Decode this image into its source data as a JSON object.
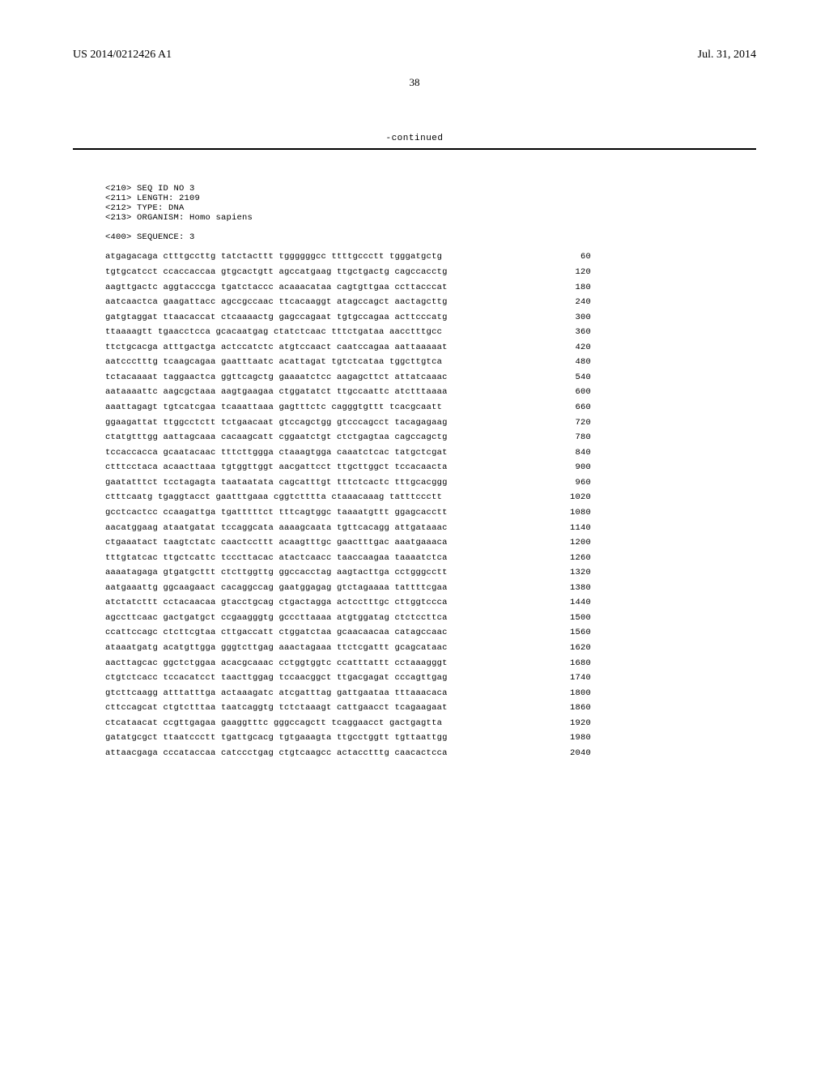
{
  "header": {
    "pub_number": "US 2014/0212426 A1",
    "pub_date": "Jul. 31, 2014",
    "page_number": "38",
    "continued_label": "-continued"
  },
  "seq_meta": {
    "seq_id": "<210> SEQ ID NO 3",
    "length": "<211> LENGTH: 2109",
    "type": "<212> TYPE: DNA",
    "organism": "<213> ORGANISM: Homo sapiens",
    "sequence_label": "<400> SEQUENCE: 3"
  },
  "sequence_lines": [
    {
      "text": "atgagacaga ctttgccttg tatctacttt tggggggcc ttttgccctt tgggatgctg",
      "pos": "60"
    },
    {
      "text": "tgtgcatcct ccaccaccaa gtgcactgtt agccatgaag ttgctgactg cagccacctg",
      "pos": "120"
    },
    {
      "text": "aagttgactc aggtacccga tgatctaccc acaaacataa cagtgttgaa ccttacccat",
      "pos": "180"
    },
    {
      "text": "aatcaactca gaagattacc agccgccaac ttcacaaggt atagccagct aactagcttg",
      "pos": "240"
    },
    {
      "text": "gatgtaggat ttaacaccat ctcaaaactg gagccagaat tgtgccagaa acttcccatg",
      "pos": "300"
    },
    {
      "text": "ttaaaagtt tgaacctcca gcacaatgag ctatctcaac tttctgataa aacctttgcc",
      "pos": "360"
    },
    {
      "text": "ttctgcacga atttgactga actccatctc atgtccaact caatccagaa aattaaaaat",
      "pos": "420"
    },
    {
      "text": "aatccctttg tcaagcagaa gaatttaatc acattagat tgtctcataa tggcttgtca",
      "pos": "480"
    },
    {
      "text": "tctacaaaat taggaactca ggttcagctg gaaaatctcc aagagcttct attatcaaac",
      "pos": "540"
    },
    {
      "text": "aataaaattc aagcgctaaa aagtgaagaa ctggatatct ttgccaattc atctttaaaa",
      "pos": "600"
    },
    {
      "text": "aaattagagt tgtcatcgaa tcaaattaaa gagtttctc cagggtgttt tcacgcaatt",
      "pos": "660"
    },
    {
      "text": "ggaagattat ttggcctctt tctgaacaat gtccagctgg gtcccagcct tacagagaag",
      "pos": "720"
    },
    {
      "text": "ctatgtttgg aattagcaaa cacaagcatt cggaatctgt ctctgagtaa cagccagctg",
      "pos": "780"
    },
    {
      "text": "tccaccacca gcaatacaac tttcttggga ctaaagtgga caaatctcac tatgctcgat",
      "pos": "840"
    },
    {
      "text": "ctttcctaca acaacttaaa tgtggttggt aacgattcct ttgcttggct tccacaacta",
      "pos": "900"
    },
    {
      "text": "gaatatttct tcctagagta taataatata cagcatttgt tttctcactc tttgcacggg",
      "pos": "960"
    },
    {
      "text": "ctttcaatg tgaggtacct gaatttgaaa cggtctttta ctaaacaaag tatttccctt",
      "pos": "1020"
    },
    {
      "text": "gcctcactcc ccaagattga tgatttttct tttcagtggc taaaatgttt ggagcacctt",
      "pos": "1080"
    },
    {
      "text": "aacatggaag ataatgatat tccaggcata aaaagcaata tgttcacagg attgataaac",
      "pos": "1140"
    },
    {
      "text": "ctgaaatact taagtctatc caactccttt acaagtttgc gaactttgac aaatgaaaca",
      "pos": "1200"
    },
    {
      "text": "tttgtatcac ttgctcattc tcccttacac atactcaacc taaccaagaa taaaatctca",
      "pos": "1260"
    },
    {
      "text": "aaaatagaga gtgatgcttt ctcttggttg ggccacctag aagtacttga cctgggcctt",
      "pos": "1320"
    },
    {
      "text": "aatgaaattg ggcaagaact cacaggccag gaatggagag gtctagaaaa tattttcgaa",
      "pos": "1380"
    },
    {
      "text": "atctatcttt cctacaacaa gtacctgcag ctgactagga actcctttgc cttggtccca",
      "pos": "1440"
    },
    {
      "text": "agccttcaac gactgatgct ccgaagggtg gcccttaaaa atgtggatag ctctccttca",
      "pos": "1500"
    },
    {
      "text": "ccattccagc ctcttcgtaa cttgaccatt ctggatctaa gcaacaacaa catagccaac",
      "pos": "1560"
    },
    {
      "text": "ataaatgatg acatgttgga gggtcttgag aaactagaaa ttctcgattt gcagcataac",
      "pos": "1620"
    },
    {
      "text": "aacttagcac ggctctggaa acacgcaaac cctggtggtc ccatttattt cctaaagggt",
      "pos": "1680"
    },
    {
      "text": "ctgtctcacc tccacatcct taacttggag tccaacggct ttgacgagat cccagttgag",
      "pos": "1740"
    },
    {
      "text": "gtcttcaagg atttatttga actaaagatc atcgatttag gattgaataa tttaaacaca",
      "pos": "1800"
    },
    {
      "text": "cttccagcat ctgtctttaa taatcaggtg tctctaaagt cattgaacct tcagaagaat",
      "pos": "1860"
    },
    {
      "text": "ctcataacat ccgttgagaa gaaggtttc gggccagctt tcaggaacct gactgagtta",
      "pos": "1920"
    },
    {
      "text": "gatatgcgct ttaatccctt tgattgcacg tgtgaaagta ttgcctggtt tgttaattgg",
      "pos": "1980"
    },
    {
      "text": "attaacgaga cccataccaa catccctgag ctgtcaagcc actacctttg caacactcca",
      "pos": "2040"
    }
  ]
}
